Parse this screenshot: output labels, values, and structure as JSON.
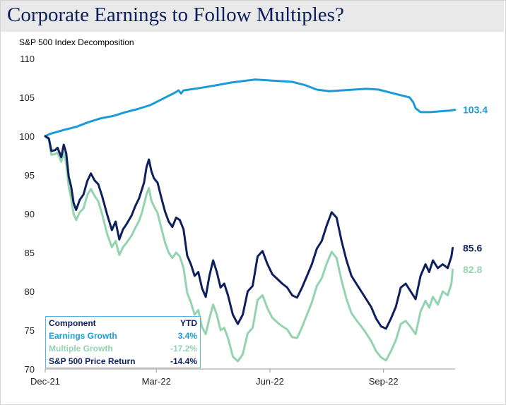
{
  "title": "Corporate Earnings to Follow Multiples?",
  "subtitle": "S&P 500 Index Decomposition",
  "colors": {
    "earnings": "#1a9ad6",
    "multiple": "#93d3b0",
    "price": "#0d1f5c",
    "title": "#0d1f5c"
  },
  "chart_data": {
    "type": "line",
    "x_tick_labels": [
      "Dec-21",
      "Mar-22",
      "Jun-22",
      "Sep-22"
    ],
    "x_tick_days": [
      0,
      90,
      182,
      274
    ],
    "y_ticks": [
      70,
      75,
      80,
      85,
      90,
      95,
      100,
      105,
      110
    ],
    "ylim": [
      70,
      110
    ],
    "grid": false,
    "series": [
      {
        "key": "earnings",
        "color": "#1a9ad6",
        "end_label": "103.4",
        "points": [
          [
            0,
            100
          ],
          [
            4,
            100.3
          ],
          [
            15,
            100.8
          ],
          [
            25,
            101.2
          ],
          [
            35,
            101.8
          ],
          [
            45,
            102.3
          ],
          [
            55,
            102.6
          ],
          [
            65,
            103.1
          ],
          [
            75,
            103.5
          ],
          [
            85,
            104
          ],
          [
            95,
            104.8
          ],
          [
            105,
            105.6
          ],
          [
            108,
            105.9
          ],
          [
            110,
            105.5
          ],
          [
            112,
            105.9
          ],
          [
            125,
            106.2
          ],
          [
            140,
            106.6
          ],
          [
            150,
            106.9
          ],
          [
            160,
            107.1
          ],
          [
            170,
            107.3
          ],
          [
            180,
            107.2
          ],
          [
            190,
            107.1
          ],
          [
            200,
            107
          ],
          [
            210,
            106.6
          ],
          [
            220,
            106
          ],
          [
            230,
            105.8
          ],
          [
            240,
            105.9
          ],
          [
            250,
            106
          ],
          [
            260,
            106.1
          ],
          [
            270,
            106
          ],
          [
            280,
            105.6
          ],
          [
            290,
            105.2
          ],
          [
            295,
            105
          ],
          [
            298,
            104.4
          ],
          [
            300,
            103.6
          ],
          [
            304,
            103.1
          ],
          [
            312,
            103.1
          ],
          [
            320,
            103.2
          ],
          [
            328,
            103.3
          ],
          [
            332,
            103.4
          ]
        ]
      },
      {
        "key": "price",
        "color": "#0d1f5c",
        "end_label": "85.6",
        "points": [
          [
            0,
            100
          ],
          [
            3,
            99.7
          ],
          [
            5,
            98.1
          ],
          [
            8,
            98.2
          ],
          [
            10,
            98.5
          ],
          [
            13,
            97.3
          ],
          [
            15,
            98.9
          ],
          [
            17,
            97.8
          ],
          [
            19,
            94.8
          ],
          [
            21,
            93.5
          ],
          [
            23,
            91.4
          ],
          [
            25,
            90.5
          ],
          [
            28,
            91.8
          ],
          [
            31,
            92.5
          ],
          [
            34,
            94.2
          ],
          [
            37,
            95.2
          ],
          [
            40,
            94.3
          ],
          [
            43,
            93.8
          ],
          [
            46,
            92.3
          ],
          [
            50,
            90
          ],
          [
            54,
            87.9
          ],
          [
            57,
            89
          ],
          [
            60,
            86.7
          ],
          [
            63,
            88
          ],
          [
            66,
            88.7
          ],
          [
            70,
            89.8
          ],
          [
            73,
            91
          ],
          [
            76,
            92
          ],
          [
            78,
            93
          ],
          [
            80,
            94
          ],
          [
            82,
            96
          ],
          [
            84,
            97
          ],
          [
            86,
            95.5
          ],
          [
            88,
            94.6
          ],
          [
            91,
            94
          ],
          [
            94,
            92.1
          ],
          [
            97,
            90.3
          ],
          [
            100,
            89
          ],
          [
            103,
            88.3
          ],
          [
            106,
            89.5
          ],
          [
            109,
            89.2
          ],
          [
            112,
            88
          ],
          [
            115,
            84.6
          ],
          [
            118,
            83.5
          ],
          [
            121,
            82
          ],
          [
            124,
            82.5
          ],
          [
            127,
            80.4
          ],
          [
            130,
            79.3
          ],
          [
            133,
            82
          ],
          [
            136,
            84
          ],
          [
            139,
            82.5
          ],
          [
            142,
            80.5
          ],
          [
            145,
            81
          ],
          [
            148,
            79.5
          ],
          [
            152,
            77
          ],
          [
            156,
            75.8
          ],
          [
            160,
            77
          ],
          [
            164,
            80
          ],
          [
            168,
            80.7
          ],
          [
            172,
            84.5
          ],
          [
            176,
            85.2
          ],
          [
            180,
            83.5
          ],
          [
            184,
            82.2
          ],
          [
            188,
            81.6
          ],
          [
            192,
            81
          ],
          [
            196,
            80.5
          ],
          [
            200,
            79.5
          ],
          [
            204,
            79.2
          ],
          [
            208,
            80.5
          ],
          [
            212,
            82
          ],
          [
            216,
            83.5
          ],
          [
            220,
            85.5
          ],
          [
            224,
            86.5
          ],
          [
            228,
            88.5
          ],
          [
            232,
            90.2
          ],
          [
            236,
            89.5
          ],
          [
            240,
            86.5
          ],
          [
            244,
            84
          ],
          [
            248,
            82
          ],
          [
            252,
            81
          ],
          [
            256,
            80
          ],
          [
            260,
            79
          ],
          [
            264,
            78
          ],
          [
            268,
            76.5
          ],
          [
            272,
            75.5
          ],
          [
            276,
            75.2
          ],
          [
            280,
            76.5
          ],
          [
            284,
            78
          ],
          [
            288,
            80.5
          ],
          [
            292,
            81
          ],
          [
            296,
            80
          ],
          [
            300,
            79
          ],
          [
            304,
            82
          ],
          [
            308,
            83.5
          ],
          [
            311,
            82.5
          ],
          [
            314,
            84
          ],
          [
            318,
            83
          ],
          [
            322,
            83.5
          ],
          [
            326,
            83
          ],
          [
            329,
            84.5
          ],
          [
            330,
            85.6
          ]
        ]
      },
      {
        "key": "multiple",
        "color": "#93d3b0",
        "end_label": "82.8",
        "points": [
          [
            0,
            100
          ],
          [
            3,
            99.5
          ],
          [
            5,
            97.6
          ],
          [
            8,
            97.7
          ],
          [
            10,
            97.9
          ],
          [
            13,
            96.7
          ],
          [
            15,
            97.9
          ],
          [
            17,
            96.5
          ],
          [
            19,
            93.5
          ],
          [
            21,
            92
          ],
          [
            23,
            90
          ],
          [
            25,
            89.2
          ],
          [
            28,
            90.2
          ],
          [
            31,
            90.7
          ],
          [
            34,
            92.4
          ],
          [
            37,
            93.2
          ],
          [
            40,
            92.3
          ],
          [
            43,
            91.6
          ],
          [
            46,
            90
          ],
          [
            50,
            87.5
          ],
          [
            54,
            85.7
          ],
          [
            57,
            86.5
          ],
          [
            60,
            84.7
          ],
          [
            63,
            85.7
          ],
          [
            66,
            86.3
          ],
          [
            70,
            87.2
          ],
          [
            73,
            88.2
          ],
          [
            76,
            89.1
          ],
          [
            78,
            90
          ],
          [
            80,
            91.2
          ],
          [
            82,
            92.5
          ],
          [
            84,
            93.3
          ],
          [
            86,
            91.7
          ],
          [
            88,
            91
          ],
          [
            91,
            90.1
          ],
          [
            94,
            88.2
          ],
          [
            97,
            86.3
          ],
          [
            100,
            85
          ],
          [
            103,
            84.3
          ],
          [
            106,
            85
          ],
          [
            109,
            84.5
          ],
          [
            112,
            83
          ],
          [
            115,
            79.8
          ],
          [
            118,
            78.6
          ],
          [
            121,
            77
          ],
          [
            124,
            77.6
          ],
          [
            127,
            75.4
          ],
          [
            130,
            74.5
          ],
          [
            133,
            76.5
          ],
          [
            136,
            78.3
          ],
          [
            139,
            77
          ],
          [
            142,
            75
          ],
          [
            145,
            75.3
          ],
          [
            148,
            74
          ],
          [
            152,
            71.6
          ],
          [
            156,
            71
          ],
          [
            160,
            71.9
          ],
          [
            164,
            74.6
          ],
          [
            168,
            75.3
          ],
          [
            172,
            78.9
          ],
          [
            176,
            79.5
          ],
          [
            180,
            77.8
          ],
          [
            184,
            76.6
          ],
          [
            188,
            76
          ],
          [
            192,
            75.5
          ],
          [
            196,
            75.1
          ],
          [
            200,
            74.1
          ],
          [
            204,
            74
          ],
          [
            208,
            75.4
          ],
          [
            212,
            77
          ],
          [
            216,
            78.6
          ],
          [
            220,
            80.7
          ],
          [
            224,
            81.7
          ],
          [
            228,
            83.6
          ],
          [
            232,
            85.1
          ],
          [
            236,
            84.3
          ],
          [
            240,
            81.4
          ],
          [
            244,
            79
          ],
          [
            248,
            77.2
          ],
          [
            252,
            76.3
          ],
          [
            256,
            75.5
          ],
          [
            260,
            74.6
          ],
          [
            264,
            73.6
          ],
          [
            268,
            72.3
          ],
          [
            272,
            71.5
          ],
          [
            276,
            71.1
          ],
          [
            280,
            72.3
          ],
          [
            284,
            73.7
          ],
          [
            288,
            75.8
          ],
          [
            292,
            76.2
          ],
          [
            296,
            75.4
          ],
          [
            300,
            74.5
          ],
          [
            304,
            77.4
          ],
          [
            308,
            78.8
          ],
          [
            311,
            77.9
          ],
          [
            314,
            79.3
          ],
          [
            318,
            78.3
          ],
          [
            322,
            80
          ],
          [
            326,
            79.5
          ],
          [
            329,
            81
          ],
          [
            330,
            82.8
          ]
        ]
      }
    ]
  },
  "ytd_table": {
    "header": {
      "label": "Component",
      "value": "YTD"
    },
    "rows": [
      {
        "label": "Earnings Growth",
        "value": "3.4%"
      },
      {
        "label": "Multiple Growth",
        "value": "-17.2%"
      },
      {
        "label": "S&P 500 Price Return",
        "value": "-14.4%"
      }
    ]
  }
}
